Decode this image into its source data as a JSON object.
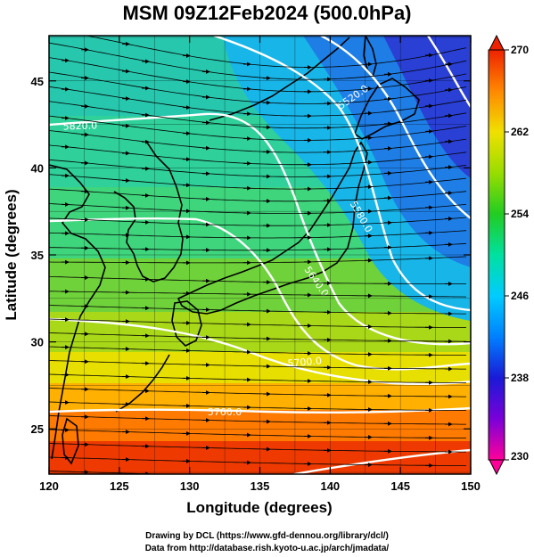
{
  "title": "MSM 09Z12Feb2024 (500.0hPa)",
  "axes": {
    "x_title": "Longitude (degrees)",
    "y_title": "Latitude  (degrees)",
    "x_range": [
      120,
      150
    ],
    "y_range": [
      22.4,
      47.6
    ],
    "x_ticks": [
      "120",
      "125",
      "130",
      "135",
      "140",
      "145",
      "150"
    ],
    "y_ticks": [
      "25",
      "30",
      "35",
      "40",
      "45"
    ]
  },
  "colorbar": {
    "range": [
      230,
      270
    ],
    "labels": [
      "270",
      "262",
      "254",
      "246",
      "238",
      "230"
    ],
    "colors": [
      "#ff0099",
      "#7a00d9",
      "#1a1ad6",
      "#0080ff",
      "#00ccff",
      "#00e0a0",
      "#22cc22",
      "#99dd00",
      "#f0e000",
      "#ff8800",
      "#ee2200"
    ]
  },
  "contours": [
    {
      "label": "5520.0"
    },
    {
      "label": "5580.0"
    },
    {
      "label": "5640.0"
    },
    {
      "label": "5700.0"
    },
    {
      "label": "5760.0"
    },
    {
      "label": "5820.0"
    }
  ],
  "footer": {
    "line1": "Drawing by DCL (https://www.gfd-dennou.org/library/dcl/)",
    "line2": "Data from http://database.rish.kyoto-u.ac.jp/arch/jmadata/"
  }
}
